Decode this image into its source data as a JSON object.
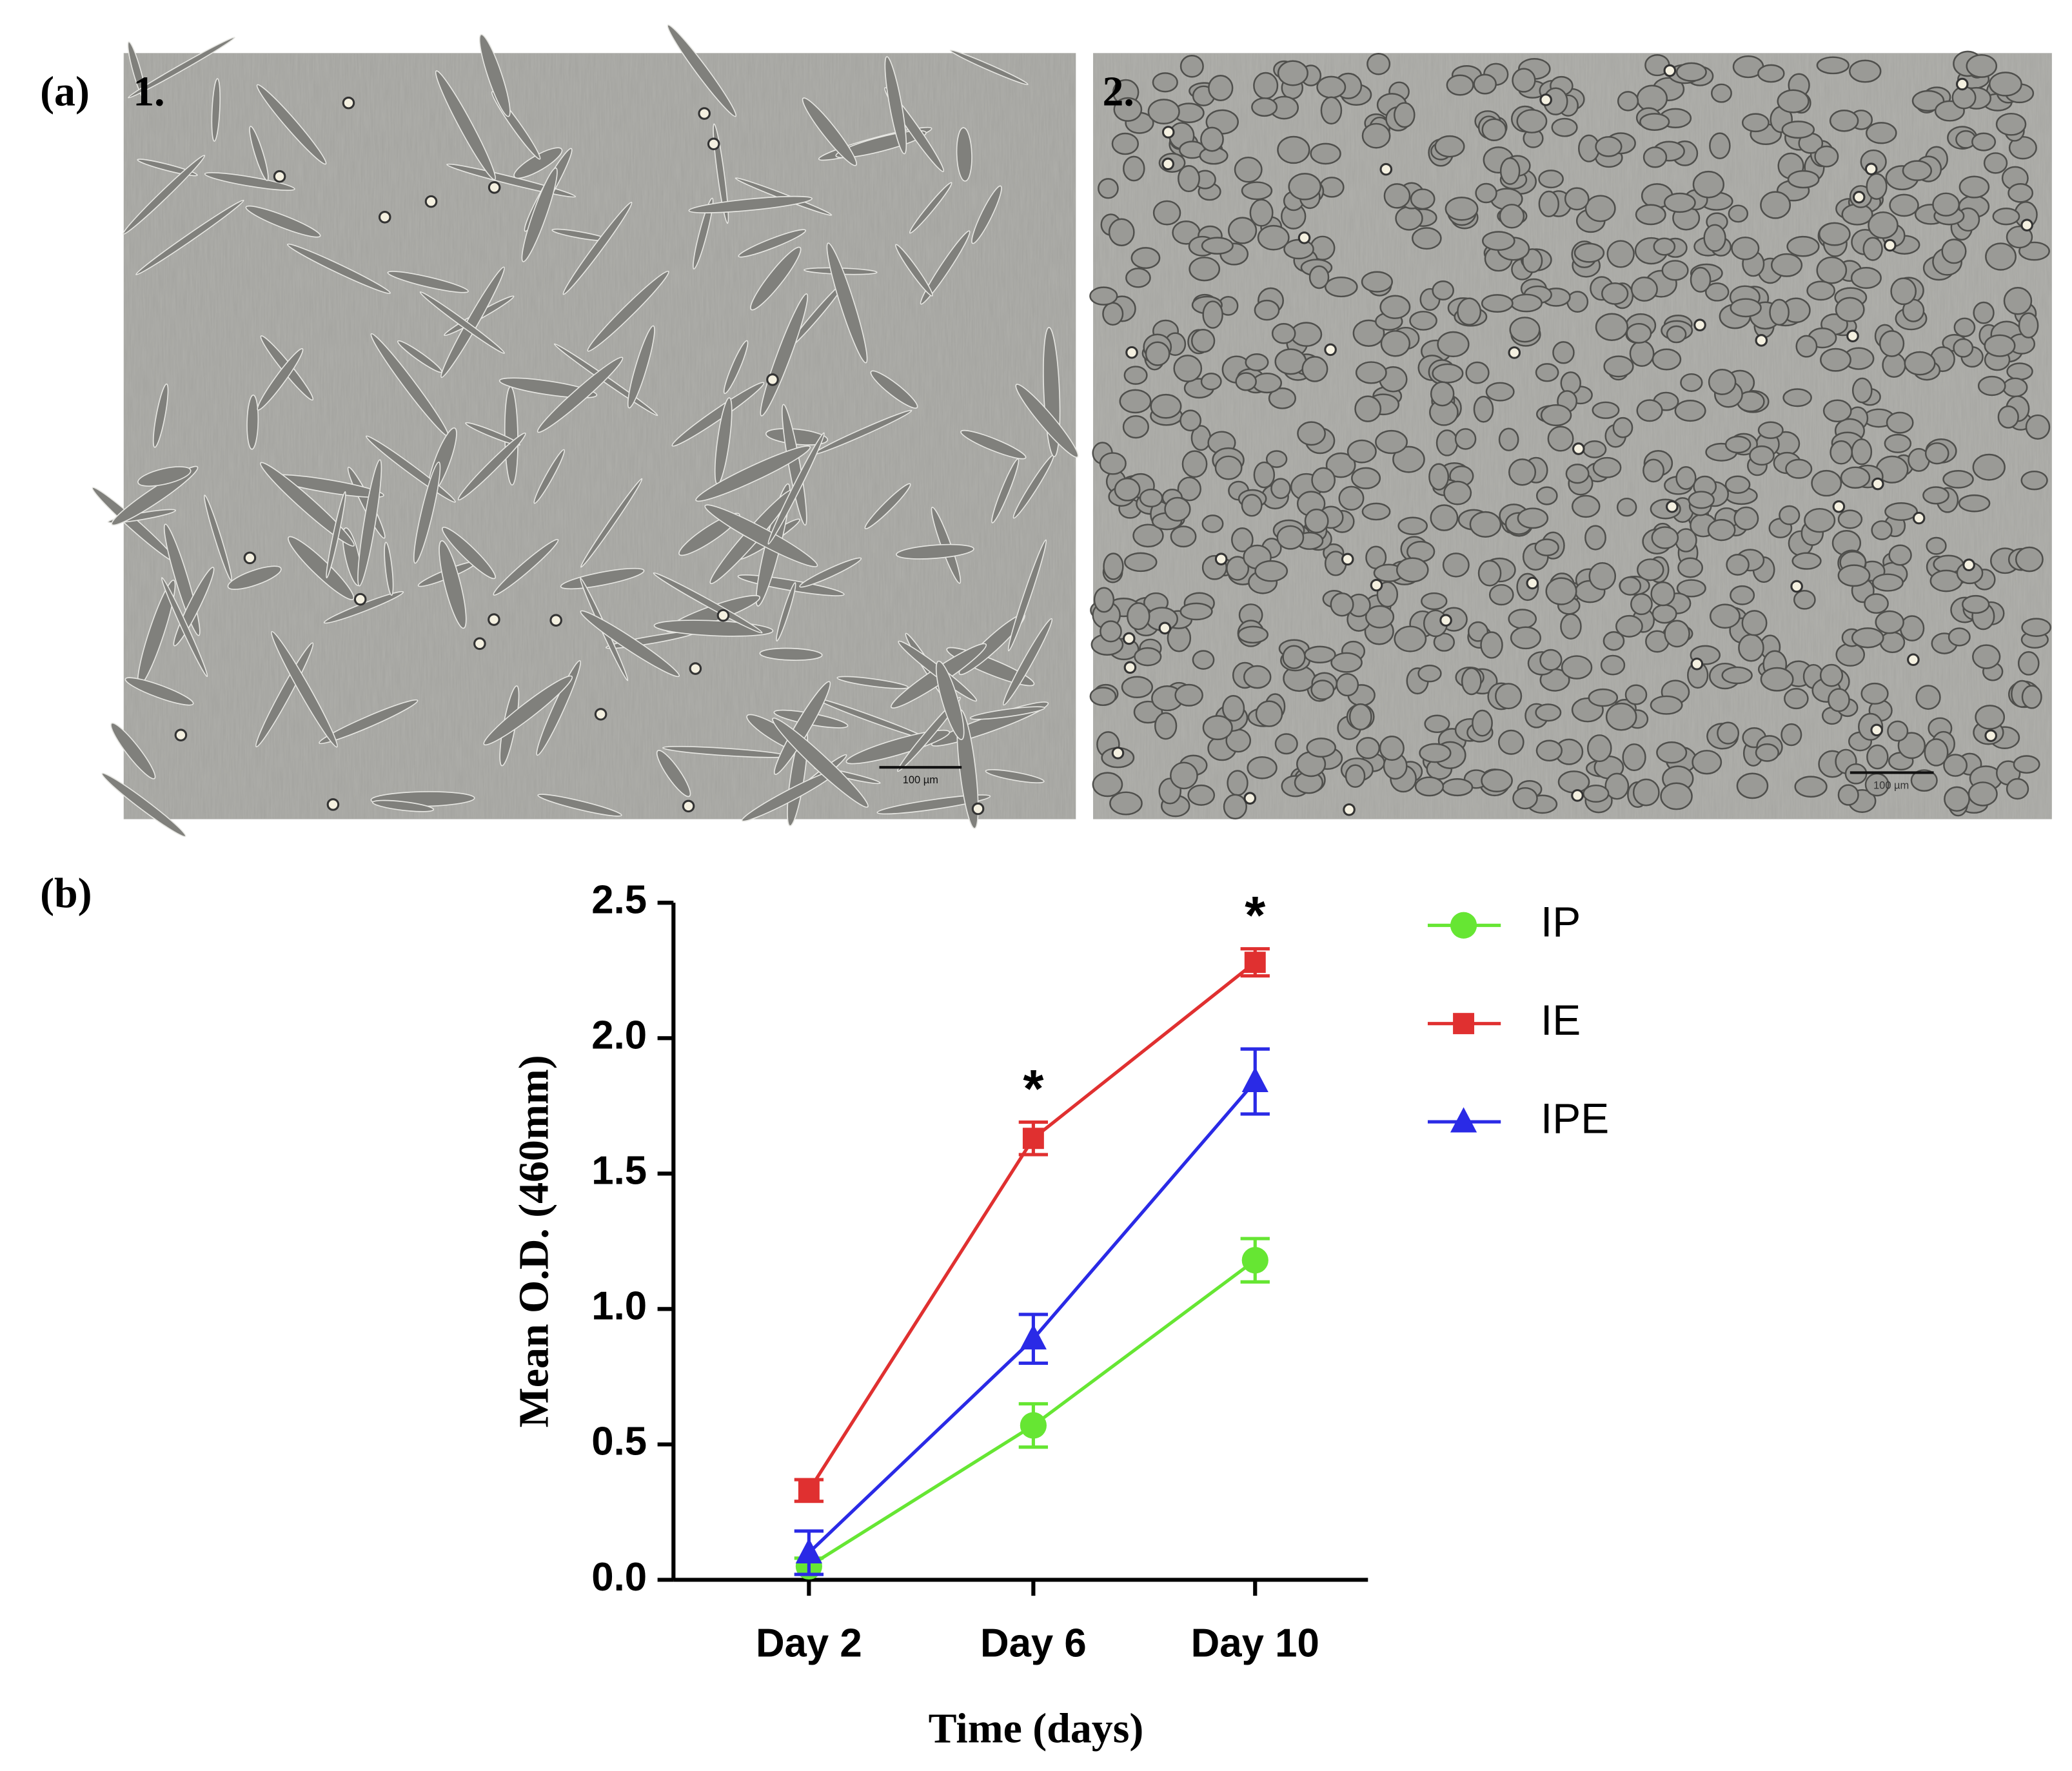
{
  "panels": {
    "a_label": "(a)",
    "b_label": "(b)",
    "image_1_label": "1.",
    "image_2_label": "2.",
    "scale_bar_1": "100 µm",
    "scale_bar_2": "100 µm"
  },
  "chart_data": {
    "type": "line",
    "x_label": "Time (days)",
    "y_label": "Mean O.D. (460mm)",
    "categories": [
      "Day 2",
      "Day 6",
      "Day 10"
    ],
    "series": [
      {
        "name": "IP",
        "color": "#66e633",
        "marker": "circle",
        "values": [
          0.05,
          0.57,
          1.18
        ],
        "errors": [
          0.03,
          0.08,
          0.08
        ]
      },
      {
        "name": "IE",
        "color": "#e03030",
        "marker": "square",
        "values": [
          0.33,
          1.63,
          2.28
        ],
        "errors": [
          0.04,
          0.06,
          0.05
        ]
      },
      {
        "name": "IPE",
        "color": "#2a2ae6",
        "marker": "triangle",
        "values": [
          0.1,
          0.89,
          1.84
        ],
        "errors": [
          0.08,
          0.09,
          0.12
        ]
      }
    ],
    "ylim": [
      0,
      2.5
    ],
    "yticks": [
      {
        "value": 0,
        "label": "0.0"
      },
      0.5,
      {
        "value": 1,
        "label": "1.0"
      },
      1.5,
      {
        "value": 2,
        "label": "2.0"
      },
      2.5
    ],
    "annotations": [
      {
        "text": "*",
        "x": "Day 6"
      },
      {
        "text": "*",
        "x": "Day 10"
      }
    ],
    "legend": "right"
  }
}
